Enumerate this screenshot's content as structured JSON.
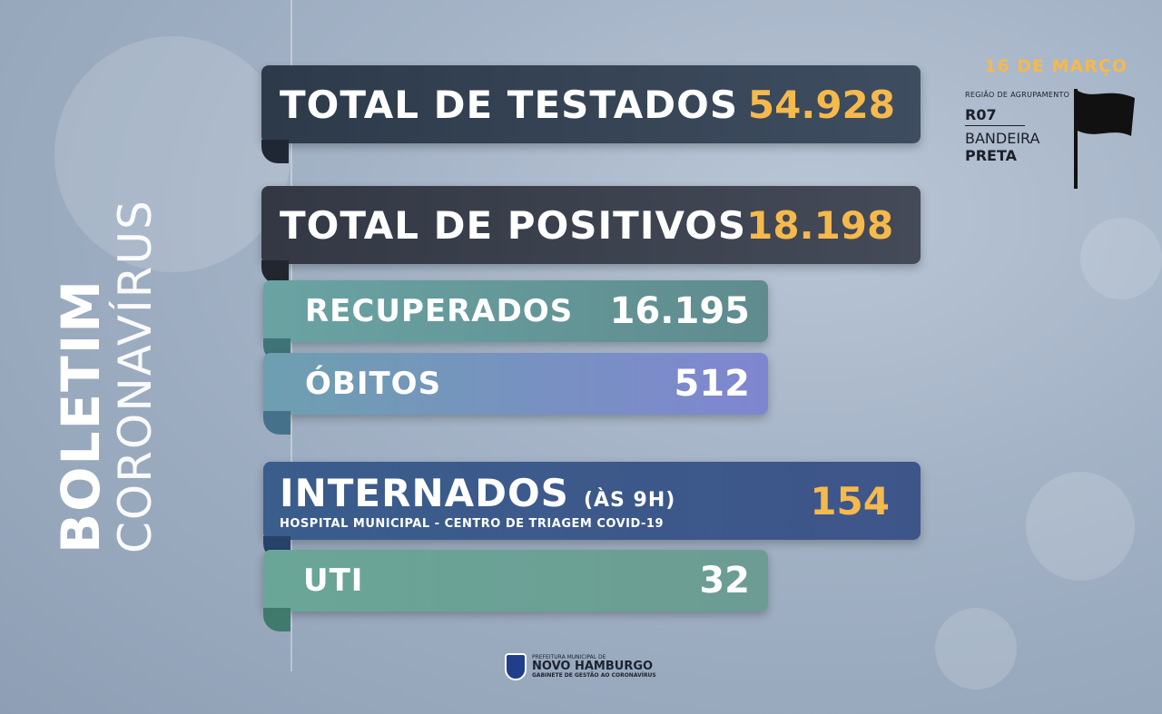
{
  "side_title": {
    "bold": "BOLETIM",
    "light": "CORONAVÍRUS"
  },
  "date": "16 DE MARÇO",
  "region": {
    "caption": "REGIÃO DE AGRUPAMENTO",
    "code": "R07",
    "band_label": "BANDEIRA",
    "band_color": "PRETA"
  },
  "stats": {
    "testados": {
      "label": "TOTAL DE TESTADOS",
      "value": "54.928"
    },
    "positivos": {
      "label": "TOTAL DE POSITIVOS",
      "value": "18.198"
    },
    "recuperados": {
      "label": "RECUPERADOS",
      "value": "16.195"
    },
    "obitos": {
      "label": "ÓBITOS",
      "value": "512"
    },
    "internados": {
      "label": "INTERNADOS",
      "sub": "(ÀS 9H)",
      "note": "HOSPITAL MUNICIPAL - CENTRO DE TRIAGEM COVID-19",
      "value": "154"
    },
    "uti": {
      "label": "UTI",
      "value": "32"
    }
  },
  "logo": {
    "pre": "PREFEITURA MUNICIPAL DE",
    "name": "NOVO HAMBURGO",
    "sub": "GABINETE DE GESTÃO AO CORONAVÍRUS"
  },
  "colors": {
    "accent": "#f5b94c",
    "flag": "#111111"
  }
}
